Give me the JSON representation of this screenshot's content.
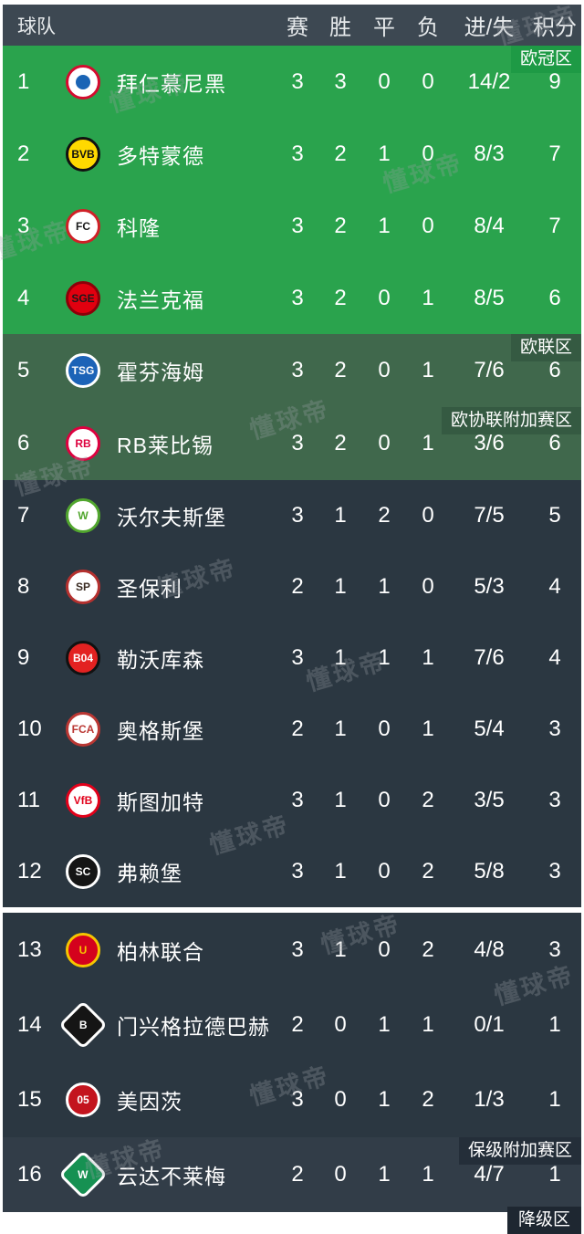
{
  "header": {
    "team": "球队",
    "played": "赛",
    "won": "胜",
    "drawn": "平",
    "lost": "负",
    "goals": "进/失",
    "points": "积分"
  },
  "zone_labels": {
    "champions_league": "欧冠区",
    "europa_league": "欧联区",
    "conference_playoff": "欧协联附加赛区",
    "relegation_playoff": "保级附加赛区",
    "relegation_partial": "降级区"
  },
  "watermark": {
    "text": "懂球帝"
  },
  "colors": {
    "header": "#3d4852",
    "cl": "#2aa34d",
    "clBadge": "#1e9a45",
    "uel": "#40684c",
    "uelBadge": "#355a42",
    "mid": "#2b3741",
    "releg": "#323d48",
    "relegBadge": "#242e39",
    "bottomBadge": "#1e2731"
  },
  "teams": [
    {
      "rank": "1",
      "name": "拜仁慕尼黑",
      "section": "cl",
      "zone_label": "欧冠区",
      "zone_style": "cl",
      "played": "3",
      "won": "3",
      "drawn": "0",
      "lost": "0",
      "goals": "14/2",
      "points": "9",
      "logo": {
        "shape": "circle",
        "bg": "#ffffff",
        "border": "#d50b2f",
        "text": "",
        "color": "#ffffff",
        "inner": "#1a64b5"
      }
    },
    {
      "rank": "2",
      "name": "多特蒙德",
      "section": "cl",
      "played": "3",
      "won": "2",
      "drawn": "1",
      "lost": "0",
      "goals": "8/3",
      "points": "7",
      "logo": {
        "shape": "circle",
        "bg": "#ffd900",
        "border": "#111111",
        "text": "BVB",
        "color": "#111111"
      }
    },
    {
      "rank": "3",
      "name": "科隆",
      "section": "cl",
      "played": "3",
      "won": "2",
      "drawn": "1",
      "lost": "0",
      "goals": "8/4",
      "points": "7",
      "logo": {
        "shape": "circle",
        "bg": "#ffffff",
        "border": "#d02027",
        "text": "FC",
        "color": "#1a1a1a"
      }
    },
    {
      "rank": "4",
      "name": "法兰克福",
      "section": "cl",
      "played": "3",
      "won": "2",
      "drawn": "0",
      "lost": "1",
      "goals": "8/5",
      "points": "6",
      "logo": {
        "shape": "circle",
        "bg": "#e1000f",
        "border": "#8c0009",
        "text": "SGE",
        "color": "#1a1a1a"
      }
    },
    {
      "rank": "5",
      "name": "霍芬海姆",
      "section": "uel",
      "zone_label": "欧联区",
      "zone_style": "uel",
      "played": "3",
      "won": "2",
      "drawn": "0",
      "lost": "1",
      "goals": "7/6",
      "points": "6",
      "logo": {
        "shape": "circle",
        "bg": "#1c63b7",
        "border": "#ffffff",
        "text": "TSG",
        "color": "#ffffff"
      }
    },
    {
      "rank": "6",
      "name": "RB莱比锡",
      "section": "uel",
      "zone_label": "欧协联附加赛区",
      "zone_style": "uel",
      "played": "3",
      "won": "2",
      "drawn": "0",
      "lost": "1",
      "goals": "3/6",
      "points": "6",
      "logo": {
        "shape": "circle",
        "bg": "#ffffff",
        "border": "#dd013f",
        "text": "RB",
        "color": "#dd013f"
      }
    },
    {
      "rank": "7",
      "name": "沃尔夫斯堡",
      "section": "mid",
      "played": "3",
      "won": "1",
      "drawn": "2",
      "lost": "0",
      "goals": "7/5",
      "points": "5",
      "logo": {
        "shape": "circle",
        "bg": "#ffffff",
        "border": "#51a62e",
        "text": "W",
        "color": "#51a62e"
      }
    },
    {
      "rank": "8",
      "name": "圣保利",
      "section": "mid",
      "played": "2",
      "won": "1",
      "drawn": "1",
      "lost": "0",
      "goals": "5/3",
      "points": "4",
      "logo": {
        "shape": "circle",
        "bg": "#ffffff",
        "border": "#b5312f",
        "text": "SP",
        "color": "#3a2b22"
      }
    },
    {
      "rank": "9",
      "name": "勒沃库森",
      "section": "mid",
      "played": "3",
      "won": "1",
      "drawn": "1",
      "lost": "1",
      "goals": "7/6",
      "points": "4",
      "logo": {
        "shape": "circle",
        "bg": "#e32221",
        "border": "#111111",
        "text": "B04",
        "color": "#ffffff"
      }
    },
    {
      "rank": "10",
      "name": "奥格斯堡",
      "section": "mid",
      "played": "2",
      "won": "1",
      "drawn": "0",
      "lost": "1",
      "goals": "5/4",
      "points": "3",
      "logo": {
        "shape": "circle",
        "bg": "#ffffff",
        "border": "#ba3733",
        "text": "FCA",
        "color": "#ba3733"
      }
    },
    {
      "rank": "11",
      "name": "斯图加特",
      "section": "mid",
      "played": "3",
      "won": "1",
      "drawn": "0",
      "lost": "2",
      "goals": "3/5",
      "points": "3",
      "logo": {
        "shape": "circle",
        "bg": "#ffffff",
        "border": "#e2001a",
        "text": "VfB",
        "color": "#e2001a"
      }
    },
    {
      "rank": "12",
      "name": "弗赖堡",
      "section": "mid",
      "played": "3",
      "won": "1",
      "drawn": "0",
      "lost": "2",
      "goals": "5/8",
      "points": "3",
      "logo": {
        "shape": "circle",
        "bg": "#151515",
        "border": "#ffffff",
        "text": "SC",
        "color": "#ffffff"
      }
    },
    {
      "rank": "13",
      "name": "柏林联合",
      "section": "lower",
      "played": "3",
      "won": "1",
      "drawn": "0",
      "lost": "2",
      "goals": "4/8",
      "points": "3",
      "logo": {
        "shape": "circle",
        "bg": "#d4011d",
        "border": "#f6c500",
        "text": "U",
        "color": "#f6c500"
      }
    },
    {
      "rank": "14",
      "name": "门兴格拉德巴赫",
      "section": "lower",
      "played": "2",
      "won": "0",
      "drawn": "1",
      "lost": "1",
      "goals": "0/1",
      "points": "1",
      "logo": {
        "shape": "diamond",
        "bg": "#151515",
        "border": "#ffffff",
        "text": "B",
        "color": "#ffffff"
      }
    },
    {
      "rank": "15",
      "name": "美因茨",
      "section": "lower",
      "played": "3",
      "won": "0",
      "drawn": "1",
      "lost": "2",
      "goals": "1/3",
      "points": "1",
      "logo": {
        "shape": "circle",
        "bg": "#c3141e",
        "border": "#ffffff",
        "text": "05",
        "color": "#ffffff"
      }
    },
    {
      "rank": "16",
      "name": "云达不莱梅",
      "section": "releg",
      "zone_label": "保级附加赛区",
      "zone_style": "releg",
      "played": "2",
      "won": "0",
      "drawn": "1",
      "lost": "1",
      "goals": "4/7",
      "points": "1",
      "logo": {
        "shape": "diamond",
        "bg": "#169152",
        "border": "#ffffff",
        "text": "W",
        "color": "#ffffff"
      }
    }
  ]
}
